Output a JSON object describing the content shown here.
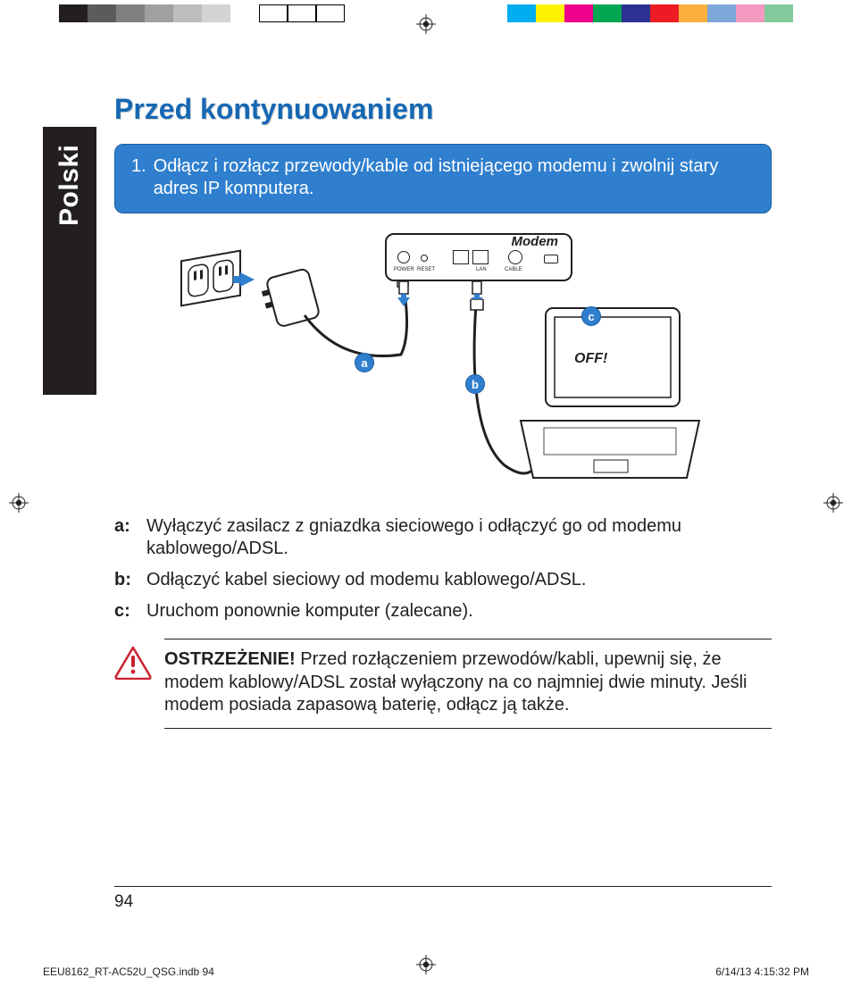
{
  "language_tab": "Polski",
  "heading": "Przed kontynuowaniem",
  "step_number": "1.",
  "step_text": "Odłącz i rozłącz przewody/kable od istniejącego modemu i zwolnij stary adres IP komputera.",
  "diagram": {
    "modem_label": "Modem",
    "screen_text": "OFF!",
    "callouts": {
      "a": "a",
      "b": "b",
      "c": "c"
    },
    "port_labels": {
      "power": "POWER",
      "reset": "RESET",
      "lan": "LAN",
      "cable": "CABLE"
    },
    "callout_bg": "#2f7fce",
    "callout_border": "#1b5e9e"
  },
  "substeps": {
    "a_label": "a:",
    "a_text": "Wyłączyć zasilacz z gniazdka sieciowego i odłączyć go od modemu kablowego/ADSL.",
    "b_label": "b:",
    "b_text": "Odłączyć kabel sieciowy od modemu kablowego/ADSL.",
    "c_label": "c:",
    "c_text": "Uruchom ponownie komputer (zalecane)."
  },
  "warning": {
    "title": "OSTRZEŻENIE!",
    "text": "Przed rozłączeniem przewodów/kabli, upewnij się, że modem kablowy/ADSL został wyłączony na co najmniej dwie minuty. Jeśli modem posiada zapasową baterię, odłącz ją także."
  },
  "page_number": "94",
  "footer_left": "EEU8162_RT-AC52U_QSG.indb   94",
  "footer_right": "6/14/13   4:15:32 PM",
  "colorbar": {
    "left": [
      "#231f20",
      "#5b5b5b",
      "#808080",
      "#a0a0a0",
      "#bdbdbd",
      "#d4d4d4",
      "#ffffff",
      "#ffffff",
      "#ffffff",
      "#ffffff"
    ],
    "right": [
      "#00aeef",
      "#fff200",
      "#ec008c",
      "#00a651",
      "#2e3192",
      "#ed1c24",
      "#fbb040",
      "#7da7d9",
      "#f49ac1",
      "#82ca9c"
    ]
  },
  "colors": {
    "heading": "#1668b3",
    "stepbox_bg": "#2f7fce",
    "stepbox_border": "#1b5e9e",
    "text": "#231f20",
    "warn_icon": "#cc2030"
  }
}
